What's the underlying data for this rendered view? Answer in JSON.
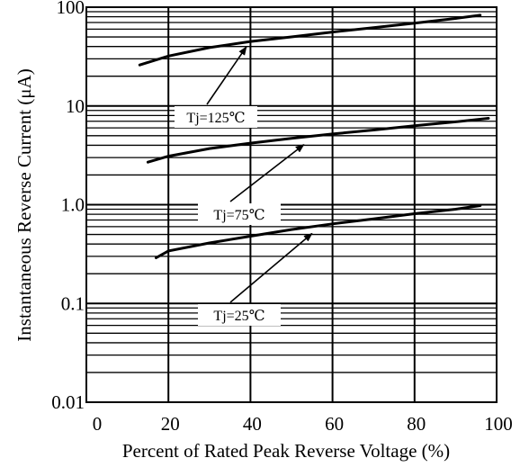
{
  "chart_data": {
    "type": "line",
    "title": "",
    "xlabel": "Percent of Rated Peak Reverse Voltage (%)",
    "ylabel": "Instantaneous Reverse Current (μA)",
    "x_scale": "linear",
    "y_scale": "log",
    "xlim": [
      0,
      100
    ],
    "ylim": [
      0.01,
      100
    ],
    "x_ticks": [
      "0",
      "20",
      "40",
      "60",
      "80",
      "100"
    ],
    "y_ticks": [
      "0.01",
      "0.1",
      "1.0",
      "10",
      "100"
    ],
    "grid": true,
    "series": [
      {
        "name": "Tj=125℃",
        "x": [
          13,
          20,
          30,
          40,
          50,
          60,
          70,
          80,
          90,
          96
        ],
        "y": [
          26,
          32,
          39,
          45,
          50,
          56,
          62,
          69,
          77,
          83
        ]
      },
      {
        "name": "Tj=75℃",
        "x": [
          15,
          20,
          30,
          40,
          50,
          60,
          70,
          80,
          90,
          98
        ],
        "y": [
          2.7,
          3.1,
          3.7,
          4.2,
          4.7,
          5.2,
          5.7,
          6.3,
          6.9,
          7.5
        ]
      },
      {
        "name": "Tj=25℃",
        "x": [
          17,
          20,
          30,
          40,
          50,
          60,
          70,
          80,
          90,
          96
        ],
        "y": [
          0.29,
          0.34,
          0.41,
          0.48,
          0.56,
          0.64,
          0.72,
          0.81,
          0.9,
          0.98
        ]
      }
    ],
    "annotations": [
      {
        "label": "Tj=125℃",
        "series": 0,
        "point_x": 39,
        "point_y": 45
      },
      {
        "label": "Tj=75℃",
        "series": 1,
        "point_x": 53,
        "point_y": 4.6
      },
      {
        "label": "Tj=25℃",
        "series": 2,
        "point_x": 55,
        "point_y": 0.58
      }
    ]
  }
}
